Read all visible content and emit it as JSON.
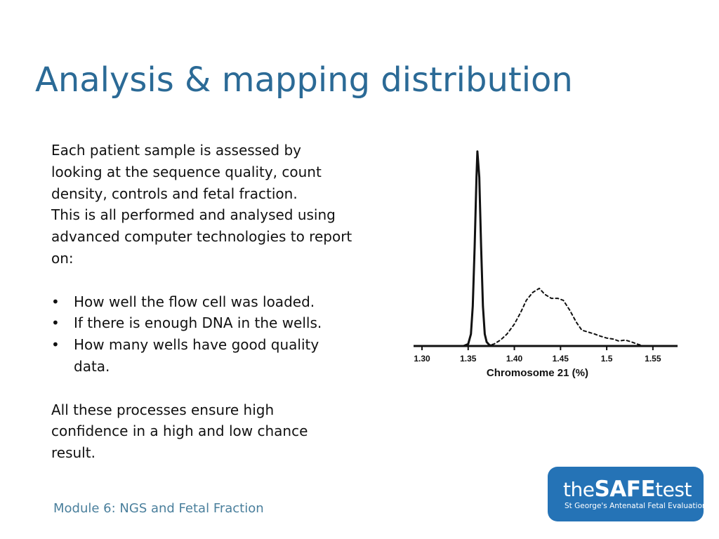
{
  "slide": {
    "title": "Analysis & mapping distribution",
    "paragraph1": "Each patient sample is assessed by looking at the sequence quality, count density, controls and fetal fraction.",
    "paragraph2": "This is all performed and analysed using advanced computer technologies to report on:",
    "bullets": [
      "How well the flow cell was loaded.",
      "If there is enough DNA in the wells.",
      "How many wells have good quality data."
    ],
    "bullet_char": "•",
    "paragraph3": "All these processes ensure high confidence in a high and low chance result.",
    "footer": "Module 6: NGS and Fetal Fraction"
  },
  "logo": {
    "word_the": "the",
    "word_safe": "SAFE",
    "word_test": "test",
    "tagline": "St George's Antenatal Fetal Evaluation",
    "background_color": "#2573b6"
  },
  "chart_data": {
    "type": "line",
    "xlabel": "Chromosome 21 (%)",
    "ylabel": "",
    "title": "",
    "xlim": [
      1.3,
      1.56
    ],
    "x_ticks": [
      "1.30",
      "1.35",
      "1.40",
      "1.45",
      "1.5",
      "1.55"
    ],
    "x_tick_values": [
      1.3,
      1.35,
      1.4,
      1.45,
      1.5,
      1.55
    ],
    "grid": false,
    "legend": "none",
    "series": [
      {
        "style": "solid",
        "x": [
          1.3,
          1.345,
          1.35,
          1.353,
          1.355,
          1.357,
          1.359,
          1.36,
          1.362,
          1.364,
          1.366,
          1.368,
          1.37,
          1.373,
          1.376,
          1.38,
          1.56
        ],
        "y": [
          0,
          0.0,
          0.01,
          0.06,
          0.2,
          0.5,
          0.85,
          0.98,
          0.85,
          0.5,
          0.2,
          0.06,
          0.02,
          0.005,
          0.0,
          0.0,
          0.0
        ]
      },
      {
        "style": "dashed",
        "x": [
          1.37,
          1.378,
          1.385,
          1.392,
          1.4,
          1.407,
          1.413,
          1.42,
          1.427,
          1.433,
          1.44,
          1.447,
          1.453,
          1.46,
          1.467,
          1.473,
          1.48,
          1.487,
          1.493,
          1.5,
          1.507,
          1.513,
          1.52,
          1.527,
          1.533,
          1.54
        ],
        "y": [
          0.0,
          0.01,
          0.03,
          0.06,
          0.11,
          0.17,
          0.23,
          0.27,
          0.29,
          0.26,
          0.24,
          0.24,
          0.23,
          0.18,
          0.12,
          0.08,
          0.07,
          0.06,
          0.05,
          0.04,
          0.035,
          0.025,
          0.03,
          0.02,
          0.01,
          0.0
        ]
      }
    ]
  }
}
